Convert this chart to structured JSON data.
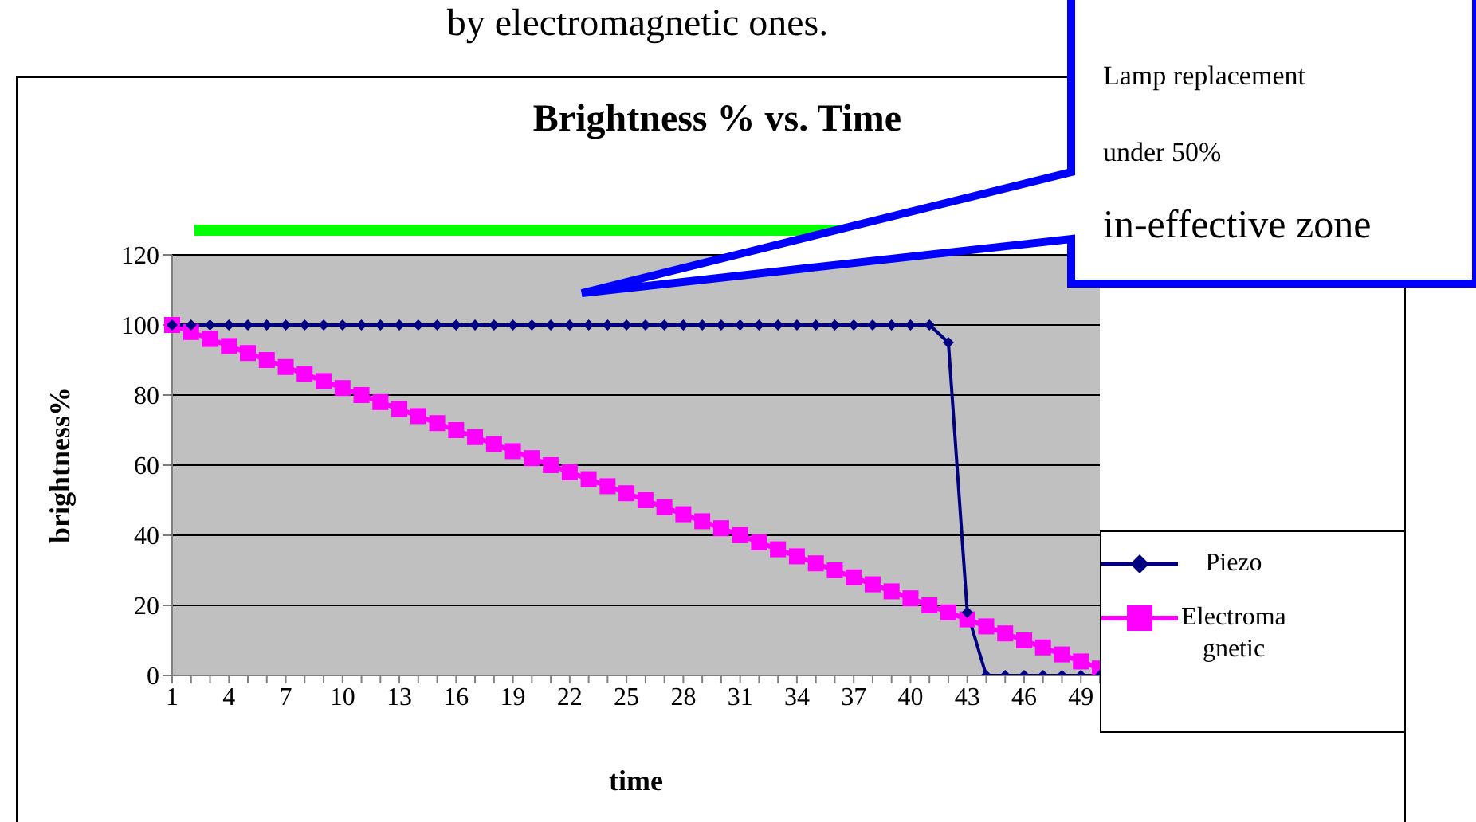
{
  "chart_data": {
    "type": "line",
    "title": "Brightness % vs. Time",
    "xlabel": "time",
    "ylabel": "brightness%",
    "annotations": [
      "by electromagnetic ones.",
      "Lamp replacement",
      "under 50%",
      "in-effective zone"
    ],
    "categories": [
      "1",
      null,
      null,
      "4",
      null,
      null,
      "7",
      null,
      null,
      "10",
      null,
      null,
      "13",
      null,
      null,
      "16",
      null,
      null,
      "19",
      null,
      null,
      "22",
      null,
      null,
      "25",
      null,
      null,
      "28",
      null,
      null,
      "31",
      null,
      null,
      "34",
      null,
      null,
      "37",
      null,
      null,
      "40",
      null,
      null,
      "43",
      null,
      null,
      "46",
      null,
      null,
      "49",
      null
    ],
    "series": [
      {
        "name": "Piezo",
        "color": "#000080",
        "marker": "diamond",
        "values": [
          100,
          100,
          100,
          100,
          100,
          100,
          100,
          100,
          100,
          100,
          100,
          100,
          100,
          100,
          100,
          100,
          100,
          100,
          100,
          100,
          100,
          100,
          100,
          100,
          100,
          100,
          100,
          100,
          100,
          100,
          100,
          100,
          100,
          100,
          100,
          100,
          100,
          100,
          100,
          100,
          100,
          95,
          18,
          0,
          0,
          0,
          0,
          0,
          0,
          0
        ]
      },
      {
        "name": "Electromagnetic",
        "color": "#ff00ff",
        "marker": "square",
        "values": [
          100,
          98,
          96,
          94,
          92,
          90,
          88,
          86,
          84,
          82,
          80,
          78,
          76,
          74,
          72,
          70,
          68,
          66,
          64,
          62,
          60,
          58,
          56,
          54,
          52,
          50,
          48,
          46,
          44,
          42,
          40,
          38,
          36,
          34,
          32,
          30,
          28,
          26,
          24,
          22,
          20,
          18,
          16,
          14,
          12,
          10,
          8,
          6,
          4,
          2
        ]
      }
    ],
    "ylim": [
      0,
      120
    ],
    "yticks": [
      0,
      20,
      40,
      60,
      80,
      100,
      120
    ],
    "grid": "y",
    "legend": "right"
  }
}
